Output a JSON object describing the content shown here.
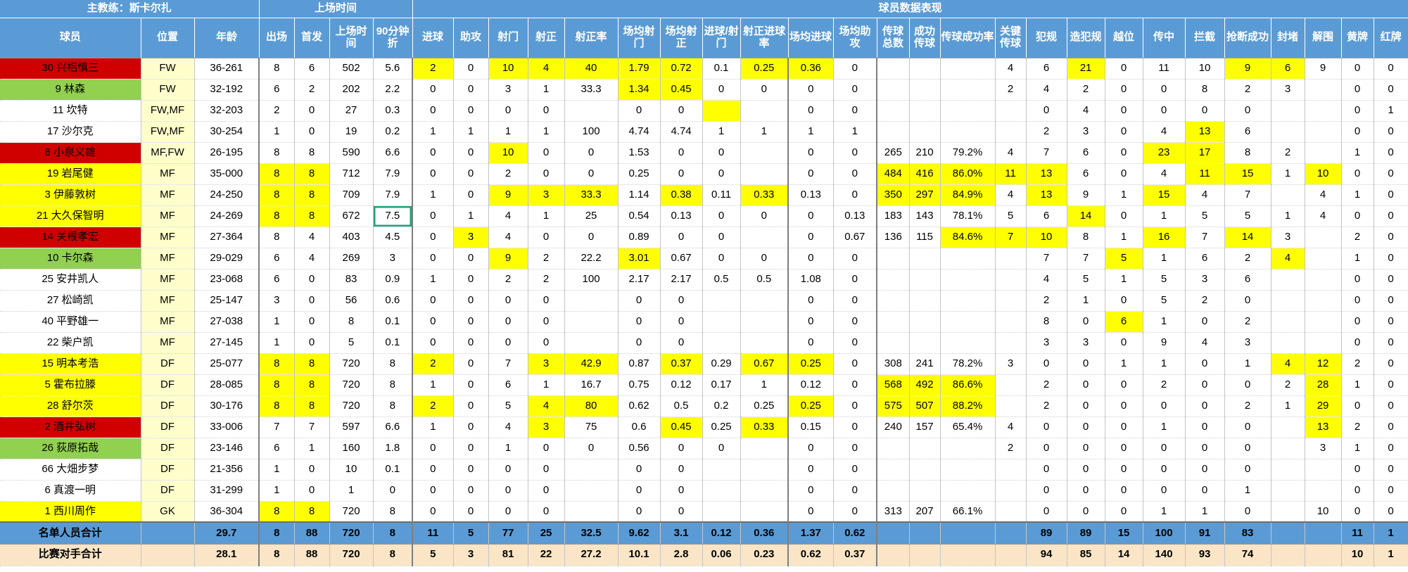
{
  "sheet": {
    "coach_label": "主教练：斯卡尔扎",
    "group_playtime": "上场时间",
    "group_performance": "球员数据表现",
    "columns": [
      "球员",
      "位置",
      "年龄",
      "出场",
      "首发",
      "上场时间",
      "90分钟折",
      "进球",
      "助攻",
      "射门",
      "射正",
      "射正率",
      "场均射门",
      "场均射正",
      "进球/射门",
      "射正进球率",
      "场均进球",
      "场均助攻",
      "传球总数",
      "成功传球",
      "传球成功率",
      "关键传球",
      "犯规",
      "造犯规",
      "越位",
      "传中",
      "拦截",
      "抢断成功",
      "封堵",
      "解围",
      "黄牌",
      "红牌"
    ],
    "colors": {
      "header_blue": "#5B9BD5",
      "highlight_yellow": "#FFFF00",
      "row_red": "#D00000",
      "row_green": "#92D050",
      "position_yellow": "#FFFFCC",
      "opponent_cream": "#FAE5C6",
      "selection_teal": "#1FA37C"
    },
    "players": [
      {
        "name": "30 兴梠慎三",
        "color": "red",
        "cells": [
          "FW",
          "36-261",
          "8",
          "6",
          "502",
          "5.6",
          "2",
          "0",
          "10",
          "4",
          "40",
          "1.79",
          "0.72",
          "0.1",
          "0.25",
          "0.36",
          "0",
          "",
          "",
          "",
          "4",
          "6",
          "21",
          "0",
          "11",
          "10",
          "9",
          "6",
          "9",
          "0",
          "0"
        ],
        "hl": [
          6,
          8,
          9,
          10,
          11,
          12,
          14,
          15,
          22,
          26,
          27
        ]
      },
      {
        "name": "9 林森",
        "color": "green",
        "cells": [
          "FW",
          "32-192",
          "6",
          "2",
          "202",
          "2.2",
          "0",
          "0",
          "3",
          "1",
          "33.3",
          "1.34",
          "0.45",
          "0",
          "0",
          "0",
          "0",
          "",
          "",
          "",
          "2",
          "4",
          "2",
          "0",
          "0",
          "8",
          "2",
          "3",
          "",
          "0",
          "0"
        ],
        "hl": [
          11,
          12
        ]
      },
      {
        "name": "11 坎特",
        "color": "white",
        "cells": [
          "FW,MF",
          "32-203",
          "2",
          "0",
          "27",
          "0.3",
          "0",
          "0",
          "0",
          "0",
          "",
          "0",
          "0",
          "",
          "",
          "0",
          "0",
          "",
          "",
          "",
          "",
          "0",
          "4",
          "0",
          "0",
          "0",
          "0",
          "",
          "",
          "0",
          "1"
        ],
        "hl": [
          13
        ]
      },
      {
        "name": "17 沙尔克",
        "color": "white",
        "cells": [
          "FW,MF",
          "30-254",
          "1",
          "0",
          "19",
          "0.2",
          "1",
          "1",
          "1",
          "1",
          "100",
          "4.74",
          "4.74",
          "1",
          "1",
          "1",
          "1",
          "",
          "",
          "",
          "",
          "2",
          "3",
          "0",
          "4",
          "13",
          "6",
          "",
          "",
          "0",
          "0"
        ],
        "hl": [
          25
        ]
      },
      {
        "name": "8 小泉义雄",
        "color": "red",
        "cells": [
          "MF,FW",
          "26-195",
          "8",
          "8",
          "590",
          "6.6",
          "0",
          "0",
          "10",
          "0",
          "0",
          "1.53",
          "0",
          "0",
          "",
          "0",
          "0",
          "265",
          "210",
          "79.2%",
          "4",
          "7",
          "6",
          "0",
          "23",
          "17",
          "8",
          "2",
          "",
          "1",
          "0"
        ],
        "hl": [
          8,
          24,
          25
        ]
      },
      {
        "name": "19 岩尾健",
        "color": "yellow",
        "cells": [
          "MF",
          "35-000",
          "8",
          "8",
          "712",
          "7.9",
          "0",
          "0",
          "2",
          "0",
          "0",
          "0.25",
          "0",
          "0",
          "",
          "0",
          "0",
          "484",
          "416",
          "86.0%",
          "11",
          "13",
          "6",
          "0",
          "4",
          "11",
          "15",
          "1",
          "10",
          "0",
          "0"
        ],
        "hl": [
          2,
          3,
          17,
          18,
          19,
          20,
          21,
          25,
          26,
          28
        ]
      },
      {
        "name": "3 伊藤敦树",
        "color": "yellow",
        "cells": [
          "MF",
          "24-250",
          "8",
          "8",
          "709",
          "7.9",
          "1",
          "0",
          "9",
          "3",
          "33.3",
          "1.14",
          "0.38",
          "0.11",
          "0.33",
          "0.13",
          "0",
          "350",
          "297",
          "84.9%",
          "4",
          "13",
          "9",
          "1",
          "15",
          "4",
          "7",
          "",
          "4",
          "1",
          "0"
        ],
        "hl": [
          2,
          3,
          8,
          9,
          10,
          12,
          14,
          17,
          18,
          19,
          21,
          24
        ]
      },
      {
        "name": "21 大久保智明",
        "color": "yellow",
        "cells": [
          "MF",
          "24-269",
          "8",
          "8",
          "672",
          "7.5",
          "0",
          "1",
          "4",
          "1",
          "25",
          "0.54",
          "0.13",
          "0",
          "0",
          "0",
          "0.13",
          "183",
          "143",
          "78.1%",
          "5",
          "6",
          "14",
          "0",
          "1",
          "5",
          "5",
          "1",
          "4",
          "0",
          "0"
        ],
        "hl": [
          2,
          3,
          22
        ],
        "sel": 5
      },
      {
        "name": "14 关根孝宏",
        "color": "red",
        "cells": [
          "MF",
          "27-364",
          "8",
          "4",
          "403",
          "4.5",
          "0",
          "3",
          "4",
          "0",
          "0",
          "0.89",
          "0",
          "0",
          "",
          "0",
          "0.67",
          "136",
          "115",
          "84.6%",
          "7",
          "10",
          "8",
          "1",
          "16",
          "7",
          "14",
          "3",
          "",
          "2",
          "0"
        ],
        "hl": [
          7,
          19,
          20,
          21,
          24,
          26
        ]
      },
      {
        "name": "10 卡尔森",
        "color": "green",
        "cells": [
          "MF",
          "29-029",
          "6",
          "4",
          "269",
          "3",
          "0",
          "0",
          "9",
          "2",
          "22.2",
          "3.01",
          "0.67",
          "0",
          "0",
          "0",
          "0",
          "",
          "",
          "",
          "",
          "7",
          "7",
          "5",
          "1",
          "6",
          "2",
          "4",
          "",
          "1",
          "0"
        ],
        "hl": [
          8,
          11,
          23,
          27
        ]
      },
      {
        "name": "25 安井凯人",
        "color": "white",
        "cells": [
          "MF",
          "23-068",
          "6",
          "0",
          "83",
          "0.9",
          "1",
          "0",
          "2",
          "2",
          "100",
          "2.17",
          "2.17",
          "0.5",
          "0.5",
          "1.08",
          "0",
          "",
          "",
          "",
          "",
          "4",
          "5",
          "1",
          "5",
          "3",
          "6",
          "",
          "",
          "0",
          "0"
        ],
        "hl": []
      },
      {
        "name": "27 松崎凯",
        "color": "white",
        "cells": [
          "MF",
          "25-147",
          "3",
          "0",
          "56",
          "0.6",
          "0",
          "0",
          "0",
          "0",
          "",
          "0",
          "0",
          "",
          "",
          "0",
          "0",
          "",
          "",
          "",
          "",
          "2",
          "1",
          "0",
          "5",
          "2",
          "0",
          "",
          "",
          "0",
          "0"
        ],
        "hl": []
      },
      {
        "name": "40 平野雄一",
        "color": "white",
        "cells": [
          "MF",
          "27-038",
          "1",
          "0",
          "8",
          "0.1",
          "0",
          "0",
          "0",
          "0",
          "",
          "0",
          "0",
          "",
          "",
          "0",
          "0",
          "",
          "",
          "",
          "",
          "8",
          "0",
          "6",
          "1",
          "0",
          "2",
          "",
          "",
          "0",
          "0"
        ],
        "hl": [
          23
        ]
      },
      {
        "name": "22 柴户凯",
        "color": "white",
        "cells": [
          "MF",
          "27-145",
          "1",
          "0",
          "5",
          "0.1",
          "0",
          "0",
          "0",
          "0",
          "",
          "0",
          "0",
          "",
          "",
          "0",
          "0",
          "",
          "",
          "",
          "",
          "3",
          "3",
          "0",
          "9",
          "4",
          "3",
          "",
          "",
          "0",
          "0"
        ],
        "hl": []
      },
      {
        "name": "15 明本考浩",
        "color": "yellow",
        "cells": [
          "DF",
          "25-077",
          "8",
          "8",
          "720",
          "8",
          "2",
          "0",
          "7",
          "3",
          "42.9",
          "0.87",
          "0.37",
          "0.29",
          "0.67",
          "0.25",
          "0",
          "308",
          "241",
          "78.2%",
          "3",
          "0",
          "0",
          "1",
          "1",
          "0",
          "1",
          "4",
          "12",
          "2",
          "0"
        ],
        "hl": [
          2,
          3,
          6,
          9,
          10,
          12,
          14,
          15,
          27,
          28
        ]
      },
      {
        "name": "5 霍布拉滕",
        "color": "yellow",
        "cells": [
          "DF",
          "28-085",
          "8",
          "8",
          "720",
          "8",
          "1",
          "0",
          "6",
          "1",
          "16.7",
          "0.75",
          "0.12",
          "0.17",
          "1",
          "0.12",
          "0",
          "568",
          "492",
          "86.6%",
          "",
          "2",
          "0",
          "0",
          "2",
          "0",
          "0",
          "2",
          "28",
          "1",
          "0"
        ],
        "hl": [
          2,
          3,
          17,
          18,
          19,
          28
        ]
      },
      {
        "name": "28 舒尔茨",
        "color": "yellow",
        "cells": [
          "DF",
          "30-176",
          "8",
          "8",
          "720",
          "8",
          "2",
          "0",
          "5",
          "4",
          "80",
          "0.62",
          "0.5",
          "0.2",
          "0.25",
          "0.25",
          "0",
          "575",
          "507",
          "88.2%",
          "",
          "2",
          "0",
          "0",
          "0",
          "0",
          "2",
          "1",
          "29",
          "0",
          "0"
        ],
        "hl": [
          2,
          3,
          6,
          9,
          10,
          15,
          17,
          18,
          19,
          28
        ]
      },
      {
        "name": "2 酒井弘树",
        "color": "red",
        "cells": [
          "DF",
          "33-006",
          "7",
          "7",
          "597",
          "6.6",
          "1",
          "0",
          "4",
          "3",
          "75",
          "0.6",
          "0.45",
          "0.25",
          "0.33",
          "0.15",
          "0",
          "240",
          "157",
          "65.4%",
          "4",
          "0",
          "0",
          "0",
          "1",
          "0",
          "0",
          "",
          "13",
          "2",
          "0"
        ],
        "hl": [
          9,
          12,
          14,
          28
        ]
      },
      {
        "name": "26 荻原拓哉",
        "color": "green",
        "cells": [
          "DF",
          "23-146",
          "6",
          "1",
          "160",
          "1.8",
          "0",
          "0",
          "1",
          "0",
          "0",
          "0.56",
          "0",
          "0",
          "",
          "0",
          "0",
          "",
          "",
          "",
          "2",
          "0",
          "0",
          "0",
          "0",
          "0",
          "0",
          "",
          "3",
          "1",
          "0"
        ],
        "hl": []
      },
      {
        "name": "66 大畑步梦",
        "color": "white",
        "cells": [
          "DF",
          "21-356",
          "1",
          "0",
          "10",
          "0.1",
          "0",
          "0",
          "0",
          "0",
          "",
          "0",
          "0",
          "",
          "",
          "0",
          "0",
          "",
          "",
          "",
          "",
          "0",
          "0",
          "0",
          "0",
          "0",
          "0",
          "",
          "",
          "0",
          "0"
        ],
        "hl": []
      },
      {
        "name": "6 真渡一明",
        "color": "white",
        "cells": [
          "DF",
          "31-299",
          "1",
          "0",
          "1",
          "0",
          "0",
          "0",
          "0",
          "0",
          "",
          "0",
          "0",
          "",
          "",
          "0",
          "0",
          "",
          "",
          "",
          "",
          "0",
          "0",
          "0",
          "0",
          "0",
          "1",
          "",
          "",
          "0",
          "0"
        ],
        "hl": []
      },
      {
        "name": "1 西川周作",
        "color": "yellow",
        "cells": [
          "GK",
          "36-304",
          "8",
          "8",
          "720",
          "8",
          "0",
          "0",
          "0",
          "0",
          "",
          "0",
          "0",
          "",
          "",
          "0",
          "0",
          "313",
          "207",
          "66.1%",
          "",
          "0",
          "0",
          "0",
          "1",
          "1",
          "0",
          "",
          "10",
          "0",
          "0"
        ],
        "hl": [
          2,
          3
        ]
      }
    ],
    "totals": [
      {
        "name": "名单人员合计",
        "style": "blue",
        "cells": [
          "",
          "29.7",
          "8",
          "88",
          "720",
          "8",
          "11",
          "5",
          "77",
          "25",
          "32.5",
          "9.62",
          "3.1",
          "0.12",
          "0.36",
          "1.37",
          "0.62",
          "",
          "",
          "",
          "",
          "89",
          "89",
          "15",
          "100",
          "91",
          "83",
          "",
          "",
          "11",
          "1"
        ]
      },
      {
        "name": "比赛对手合计",
        "style": "cream",
        "cells": [
          "",
          "28.1",
          "8",
          "88",
          "720",
          "8",
          "5",
          "3",
          "81",
          "22",
          "27.2",
          "10.1",
          "2.8",
          "0.06",
          "0.23",
          "0.62",
          "0.37",
          "",
          "",
          "",
          "",
          "94",
          "85",
          "14",
          "140",
          "93",
          "74",
          "",
          "",
          "10",
          "1"
        ]
      }
    ]
  }
}
